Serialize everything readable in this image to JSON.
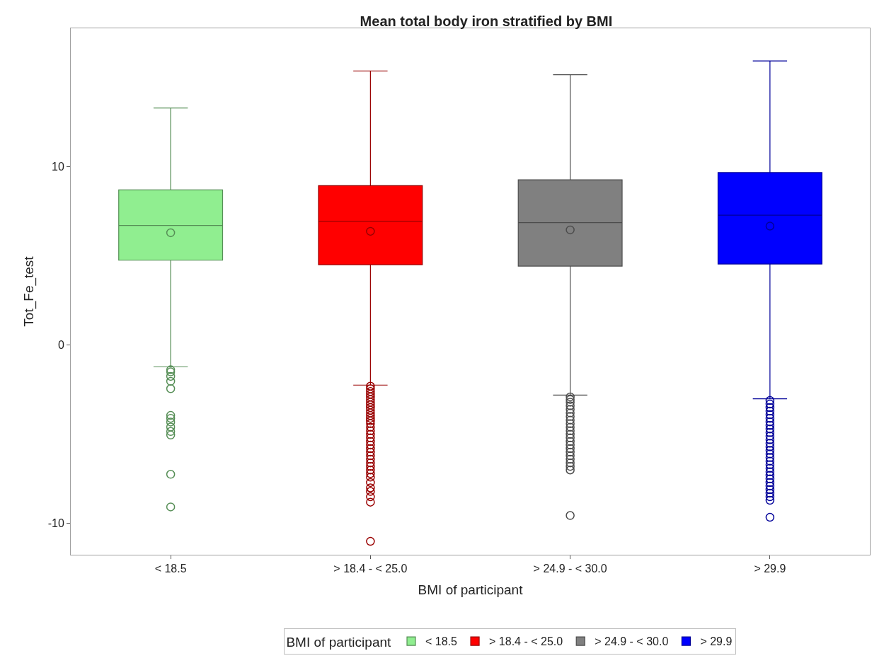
{
  "chart_data": {
    "type": "box",
    "title": "Mean total body iron stratified by BMI",
    "xlabel": "BMI of participant",
    "ylabel": "Tot_Fe_test",
    "legend_title": "BMI of participant",
    "legend": "bottom",
    "marker": "circle",
    "categories": [
      "< 18.5",
      "> 18.4 - < 25.0",
      "> 24.9 - < 30.0",
      "> 29.9"
    ],
    "ylim": [
      -11.75,
      17.76
    ],
    "yticks": [
      -10,
      0,
      10
    ],
    "series": [
      {
        "name": "< 18.5",
        "color": "#90ee90",
        "boxes": [
          {
            "low": -1.22,
            "q1": 4.76,
            "median": 6.71,
            "q3": 8.7,
            "high": 13.29,
            "mean": 6.3,
            "outliers": [
              -1.38,
              -1.5,
              -1.75,
              -2.03,
              -2.44,
              -3.94,
              -4.1,
              -4.31,
              -4.59,
              -4.84,
              -5.04,
              -7.24,
              -9.07
            ]
          },
          null,
          null,
          null
        ]
      },
      {
        "name": "> 18.4 - < 25.0",
        "color": "#ff0000",
        "boxes": [
          null,
          {
            "low": -2.24,
            "q1": 4.51,
            "median": 6.95,
            "q3": 8.94,
            "high": 15.37,
            "mean": 6.38,
            "outliers": [
              -2.3,
              -2.45,
              -2.6,
              -2.75,
              -2.9,
              -3.05,
              -3.2,
              -3.35,
              -3.5,
              -3.65,
              -3.8,
              -3.95,
              -4.1,
              -4.25,
              -4.4,
              -4.6,
              -4.8,
              -5.0,
              -5.2,
              -5.4,
              -5.6,
              -5.8,
              -6.0,
              -6.2,
              -6.4,
              -6.6,
              -6.8,
              -7.0,
              -7.2,
              -7.4,
              -7.7,
              -8.0,
              -8.2,
              -8.5,
              -8.8,
              -11.0
            ]
          },
          null,
          null
        ]
      },
      {
        "name": "> 24.9 - < 30.0",
        "color": "#808080",
        "boxes": [
          null,
          null,
          {
            "low": -2.8,
            "q1": 4.43,
            "median": 6.87,
            "q3": 9.27,
            "high": 15.16,
            "mean": 6.46,
            "outliers": [
              -2.9,
              -3.05,
              -3.2,
              -3.4,
              -3.6,
              -3.8,
              -4.0,
              -4.2,
              -4.4,
              -4.6,
              -4.8,
              -5.0,
              -5.2,
              -5.4,
              -5.6,
              -5.8,
              -6.0,
              -6.2,
              -6.4,
              -6.6,
              -6.8,
              -7.0,
              -9.55
            ]
          },
          null
        ]
      },
      {
        "name": "> 29.9",
        "color": "#0000ff",
        "boxes": [
          null,
          null,
          null,
          {
            "low": -3.01,
            "q1": 4.55,
            "median": 7.28,
            "q3": 9.67,
            "high": 15.93,
            "mean": 6.67,
            "outliers": [
              -3.1,
              -3.3,
              -3.5,
              -3.7,
              -3.9,
              -4.1,
              -4.3,
              -4.5,
              -4.7,
              -4.9,
              -5.1,
              -5.3,
              -5.5,
              -5.7,
              -5.9,
              -6.1,
              -6.3,
              -6.5,
              -6.7,
              -6.9,
              -7.1,
              -7.3,
              -7.5,
              -7.7,
              -7.9,
              -8.1,
              -8.3,
              -8.5,
              -8.7,
              -9.65
            ]
          }
        ]
      }
    ]
  }
}
